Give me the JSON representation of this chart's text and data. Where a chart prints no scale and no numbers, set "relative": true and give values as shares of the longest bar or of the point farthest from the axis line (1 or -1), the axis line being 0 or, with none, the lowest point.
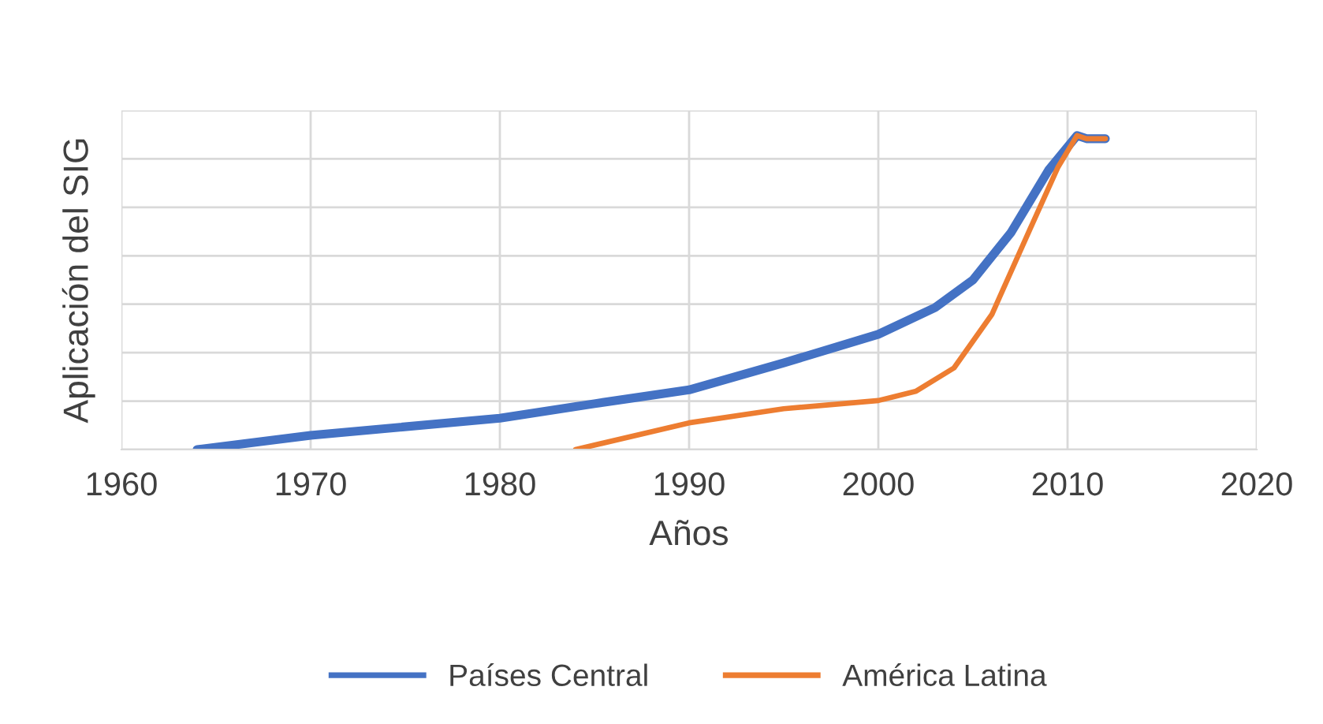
{
  "chart_data": {
    "type": "line",
    "xlabel": "Años",
    "ylabel": "Aplicación del SIG",
    "relative": true,
    "xlim": [
      1960,
      2020
    ],
    "xticks": [
      1960,
      1970,
      1980,
      1990,
      2000,
      2010,
      2020
    ],
    "grid": true,
    "legend": "bottom",
    "marker": "none",
    "line_style": "solid",
    "series": [
      {
        "name": "Países Central",
        "color": "#4472c4",
        "x": [
          1964,
          1970,
          1980,
          1985,
          1990,
          1995,
          2000,
          2003,
          2005,
          2007,
          2009,
          2010.5,
          2011,
          2012
        ],
        "values": [
          0,
          0.045,
          0.1,
          0.146,
          0.19,
          0.276,
          0.367,
          0.452,
          0.54,
          0.69,
          0.89,
          1.0,
          0.99,
          0.99
        ]
      },
      {
        "name": "América Latina",
        "color": "#ed7d31",
        "x": [
          1984,
          1990,
          1995,
          2000,
          2002,
          2004,
          2006,
          2008,
          2009.5,
          2010.5,
          2011,
          2012
        ],
        "values": [
          0,
          0.085,
          0.13,
          0.156,
          0.186,
          0.26,
          0.43,
          0.7,
          0.9,
          1.0,
          0.99,
          0.99
        ]
      }
    ]
  }
}
